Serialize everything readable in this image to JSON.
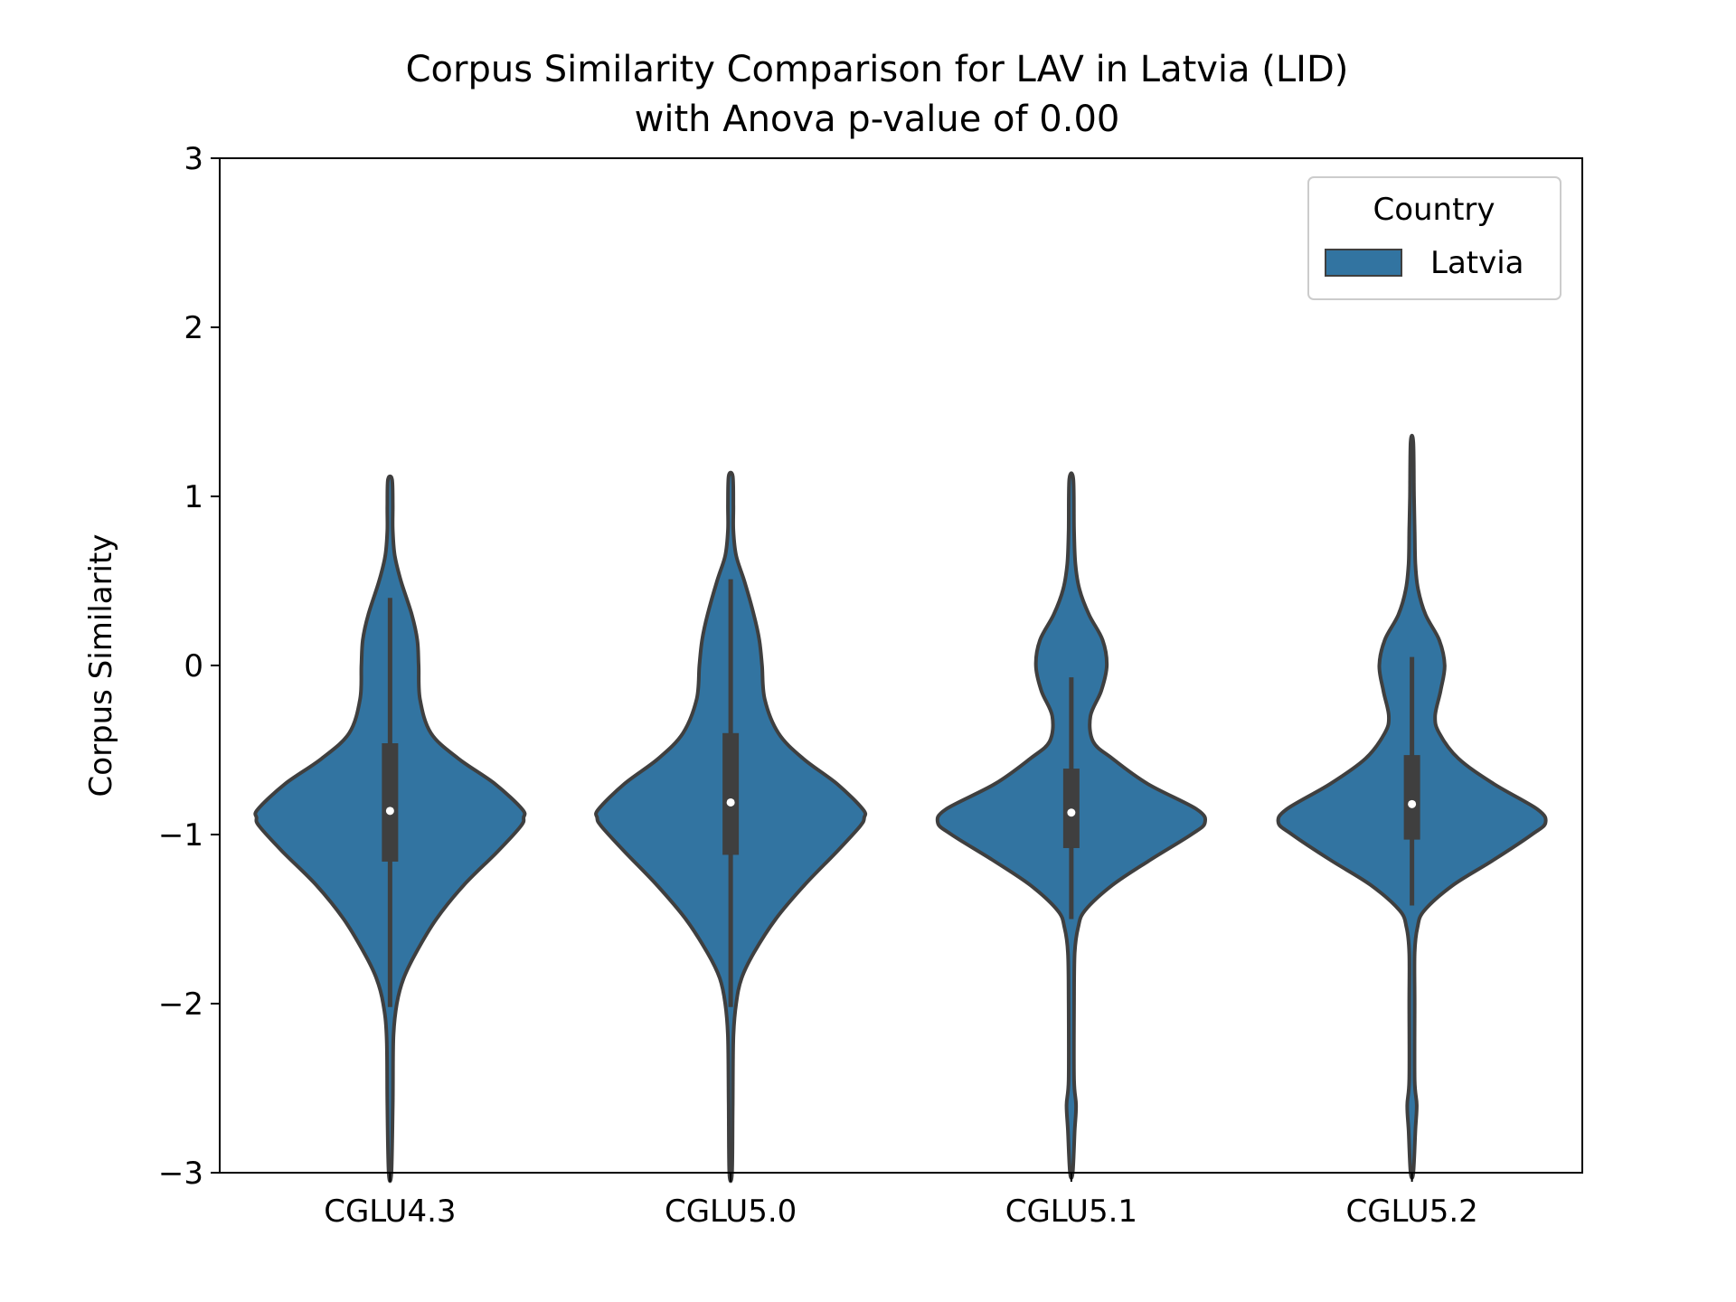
{
  "chart_data": {
    "type": "violin",
    "title_line1": "Corpus Similarity Comparison for LAV in Latvia (LID)",
    "title_line2": "with Anova p-value of 0.00",
    "xlabel": "",
    "ylabel": "Corpus Similarity",
    "ylim": [
      -3,
      3
    ],
    "yticks": [
      -3,
      -2,
      -1,
      0,
      1,
      2,
      3
    ],
    "ytick_labels": [
      "−3",
      "−2",
      "−1",
      "0",
      "1",
      "2",
      "3"
    ],
    "categories": [
      "CGLU4.3",
      "CGLU5.0",
      "CGLU5.1",
      "CGLU5.2"
    ],
    "legend": {
      "title": "Country",
      "placement": "top-right",
      "entries": [
        {
          "label": "Latvia",
          "color": "#3274a1"
        }
      ]
    },
    "colors": {
      "fill": "#3274a1",
      "edge": "#3f3f3f",
      "box": "#3f3f3f",
      "median": "#ffffff"
    },
    "series": [
      {
        "name": "Latvia",
        "violins": [
          {
            "category": "CGLU4.3",
            "box": {
              "q1": -1.16,
              "median": -0.86,
              "q3": -0.46,
              "whisker_low": -2.02,
              "whisker_high": 0.4
            },
            "profile": [
              [
                -3.0,
                0.01
              ],
              [
                -2.6,
                0.02
              ],
              [
                -2.2,
                0.025
              ],
              [
                -2.0,
                0.05
              ],
              [
                -1.85,
                0.1
              ],
              [
                -1.7,
                0.19
              ],
              [
                -1.5,
                0.34
              ],
              [
                -1.3,
                0.54
              ],
              [
                -1.1,
                0.79
              ],
              [
                -0.95,
                0.96
              ],
              [
                -0.9,
                0.98
              ],
              [
                -0.85,
                0.97
              ],
              [
                -0.7,
                0.77
              ],
              [
                -0.55,
                0.5
              ],
              [
                -0.4,
                0.3
              ],
              [
                -0.2,
                0.22
              ],
              [
                0.0,
                0.21
              ],
              [
                0.15,
                0.2
              ],
              [
                0.3,
                0.16
              ],
              [
                0.5,
                0.08
              ],
              [
                0.65,
                0.035
              ],
              [
                0.8,
                0.02
              ],
              [
                0.95,
                0.02
              ],
              [
                1.1,
                0.015
              ]
            ]
          },
          {
            "category": "CGLU5.0",
            "box": {
              "q1": -1.12,
              "median": -0.81,
              "q3": -0.4,
              "whisker_low": -2.02,
              "whisker_high": 0.51
            },
            "profile": [
              [
                -3.0,
                0.01
              ],
              [
                -2.6,
                0.015
              ],
              [
                -2.2,
                0.02
              ],
              [
                -2.0,
                0.04
              ],
              [
                -1.85,
                0.08
              ],
              [
                -1.7,
                0.17
              ],
              [
                -1.5,
                0.33
              ],
              [
                -1.3,
                0.54
              ],
              [
                -1.1,
                0.78
              ],
              [
                -0.95,
                0.95
              ],
              [
                -0.9,
                0.98
              ],
              [
                -0.85,
                0.97
              ],
              [
                -0.7,
                0.78
              ],
              [
                -0.55,
                0.53
              ],
              [
                -0.4,
                0.35
              ],
              [
                -0.2,
                0.25
              ],
              [
                0.0,
                0.23
              ],
              [
                0.15,
                0.21
              ],
              [
                0.3,
                0.17
              ],
              [
                0.5,
                0.1
              ],
              [
                0.65,
                0.04
              ],
              [
                0.8,
                0.02
              ],
              [
                0.95,
                0.02
              ],
              [
                1.12,
                0.015
              ]
            ]
          },
          {
            "category": "CGLU5.1",
            "box": {
              "q1": -1.08,
              "median": -0.87,
              "q3": -0.61,
              "whisker_low": -1.5,
              "whisker_high": -0.07
            },
            "profile": [
              [
                -3.0,
                0.01
              ],
              [
                -2.75,
                0.025
              ],
              [
                -2.6,
                0.035
              ],
              [
                -2.45,
                0.02
              ],
              [
                -2.0,
                0.02
              ],
              [
                -1.7,
                0.025
              ],
              [
                -1.55,
                0.05
              ],
              [
                -1.45,
                0.1
              ],
              [
                -1.3,
                0.3
              ],
              [
                -1.15,
                0.58
              ],
              [
                -1.0,
                0.88
              ],
              [
                -0.93,
                0.98
              ],
              [
                -0.85,
                0.92
              ],
              [
                -0.7,
                0.56
              ],
              [
                -0.55,
                0.3
              ],
              [
                -0.45,
                0.16
              ],
              [
                -0.3,
                0.14
              ],
              [
                -0.15,
                0.22
              ],
              [
                0.0,
                0.26
              ],
              [
                0.15,
                0.23
              ],
              [
                0.3,
                0.13
              ],
              [
                0.45,
                0.06
              ],
              [
                0.6,
                0.03
              ],
              [
                0.8,
                0.02
              ],
              [
                1.1,
                0.015
              ]
            ]
          },
          {
            "category": "CGLU5.2",
            "box": {
              "q1": -1.03,
              "median": -0.82,
              "q3": -0.53,
              "whisker_low": -1.42,
              "whisker_high": 0.05
            },
            "profile": [
              [
                -3.0,
                0.01
              ],
              [
                -2.75,
                0.025
              ],
              [
                -2.6,
                0.035
              ],
              [
                -2.45,
                0.02
              ],
              [
                -2.0,
                0.02
              ],
              [
                -1.7,
                0.02
              ],
              [
                -1.55,
                0.04
              ],
              [
                -1.45,
                0.09
              ],
              [
                -1.3,
                0.3
              ],
              [
                -1.15,
                0.6
              ],
              [
                -1.0,
                0.88
              ],
              [
                -0.93,
                0.98
              ],
              [
                -0.85,
                0.92
              ],
              [
                -0.7,
                0.6
              ],
              [
                -0.55,
                0.34
              ],
              [
                -0.4,
                0.2
              ],
              [
                -0.3,
                0.17
              ],
              [
                -0.15,
                0.21
              ],
              [
                0.0,
                0.24
              ],
              [
                0.15,
                0.2
              ],
              [
                0.3,
                0.1
              ],
              [
                0.45,
                0.045
              ],
              [
                0.6,
                0.025
              ],
              [
                0.8,
                0.02
              ],
              [
                1.0,
                0.015
              ],
              [
                1.32,
                0.01
              ]
            ]
          }
        ]
      }
    ]
  }
}
